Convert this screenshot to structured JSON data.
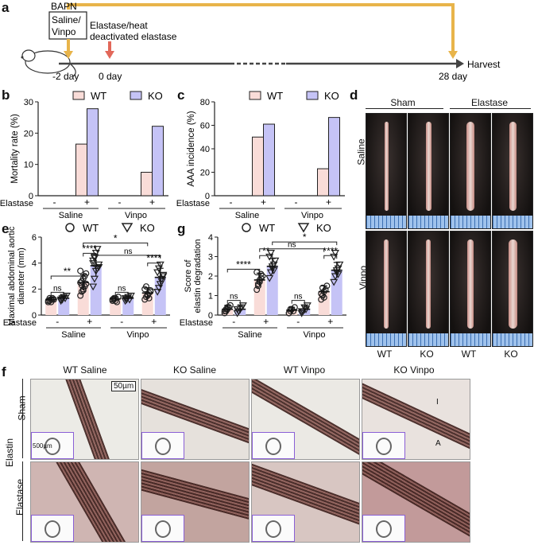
{
  "panels": {
    "a": "a",
    "b": "b",
    "c": "c",
    "d": "d",
    "e": "e",
    "f": "f",
    "g": "g"
  },
  "timeline": {
    "bapn": "BAPN",
    "treatment_line1": "Saline/",
    "treatment_line2": "Vinpo",
    "elastase_line1": "Elastase/heat",
    "elastase_line2": "deactivated elastase",
    "t_minus2": "-2 day",
    "t0": "0 day",
    "t28": "28 day",
    "harvest": "Harvest",
    "colors": {
      "orange": "#e8b44a",
      "red": "#e2685a",
      "axis": "#444444"
    }
  },
  "legend": {
    "wt": "WT",
    "ko": "KO"
  },
  "colors": {
    "wt_fill": "#f9dcd8",
    "ko_fill": "#c5c3f6",
    "inset_border": "#8a5fd6"
  },
  "axes_common": {
    "elastase": "Elastase",
    "minus": "-",
    "plus": "+",
    "saline": "Saline",
    "vinpo": "Vinpo"
  },
  "chart_data": [
    {
      "panel": "b",
      "type": "bar",
      "ylabel": "Mortality rate (%)",
      "ylim": [
        0,
        30
      ],
      "yticks": [
        0,
        10,
        20,
        30
      ],
      "categories": [
        "Saline -",
        "Saline +",
        "Vinpo -",
        "Vinpo +"
      ],
      "series": [
        {
          "name": "WT",
          "values": [
            0,
            16.5,
            0,
            7.5
          ]
        },
        {
          "name": "KO",
          "values": [
            0,
            27.8,
            0,
            22.2
          ]
        }
      ]
    },
    {
      "panel": "c",
      "type": "bar",
      "ylabel": "AAA incidence (%)",
      "ylim": [
        0,
        80
      ],
      "yticks": [
        0,
        20,
        40,
        60,
        80
      ],
      "categories": [
        "Saline -",
        "Saline +",
        "Vinpo -",
        "Vinpo +"
      ],
      "series": [
        {
          "name": "WT",
          "values": [
            0,
            50,
            0,
            23
          ]
        },
        {
          "name": "KO",
          "values": [
            0,
            61,
            0,
            66.7
          ]
        }
      ]
    },
    {
      "panel": "e",
      "type": "scatter",
      "ylabel": "Maximal abdominal aortic diameter (mm)",
      "ylim": [
        0,
        6
      ],
      "yticks": [
        0,
        2,
        4,
        6
      ],
      "groups": [
        {
          "series": "WT",
          "cond": "Saline -",
          "mean": 1.2,
          "sd": 0.15,
          "points": [
            1.0,
            1.1,
            1.2,
            1.3,
            1.2,
            1.1,
            1.3,
            1.0,
            1.2
          ]
        },
        {
          "series": "KO",
          "cond": "Saline -",
          "mean": 1.3,
          "sd": 0.15,
          "points": [
            1.1,
            1.2,
            1.4,
            1.3,
            1.5,
            1.2,
            1.3,
            1.4
          ]
        },
        {
          "series": "WT",
          "cond": "Saline +",
          "mean": 2.5,
          "sd": 0.6,
          "points": [
            1.5,
            1.8,
            2.0,
            2.2,
            2.4,
            2.5,
            2.6,
            2.8,
            3.0,
            3.2,
            3.4,
            2.3,
            1.9
          ]
        },
        {
          "series": "KO",
          "cond": "Saline +",
          "mean": 3.8,
          "sd": 0.8,
          "points": [
            2.2,
            2.8,
            3.4,
            3.6,
            3.9,
            4.2,
            4.5,
            4.8,
            5.1,
            3.7,
            4.0,
            4.4
          ]
        },
        {
          "series": "WT",
          "cond": "Vinpo -",
          "mean": 1.25,
          "sd": 0.15,
          "points": [
            1.1,
            1.2,
            1.3,
            1.0,
            1.4,
            1.2,
            1.3,
            1.1
          ]
        },
        {
          "series": "KO",
          "cond": "Vinpo -",
          "mean": 1.3,
          "sd": 0.15,
          "points": [
            1.1,
            1.3,
            1.4,
            1.2,
            1.5,
            1.3,
            1.2
          ]
        },
        {
          "series": "WT",
          "cond": "Vinpo +",
          "mean": 1.7,
          "sd": 0.4,
          "points": [
            1.2,
            1.4,
            1.5,
            1.7,
            1.8,
            2.0,
            2.2,
            1.6,
            1.3,
            1.9
          ]
        },
        {
          "series": "KO",
          "cond": "Vinpo +",
          "mean": 2.9,
          "sd": 0.7,
          "points": [
            1.8,
            2.1,
            2.4,
            2.8,
            3.0,
            3.3,
            3.6,
            3.9,
            2.6,
            3.1
          ]
        }
      ],
      "significance": [
        {
          "label": "**",
          "a": 0,
          "b": 2,
          "level": 3.0
        },
        {
          "label": "ns",
          "a": 0,
          "b": 1,
          "level": 1.75
        },
        {
          "label": "****",
          "a": 2,
          "b": 3,
          "level": 4.75
        },
        {
          "label": "ns",
          "a": 3,
          "b": 7,
          "level": 4.6
        },
        {
          "label": "*",
          "a": 2,
          "b": 6,
          "level": 5.55
        },
        {
          "label": "****",
          "a": 6,
          "b": 7,
          "level": 4.0
        },
        {
          "label": "ns",
          "a": 4,
          "b": 5,
          "level": 1.75
        }
      ]
    },
    {
      "panel": "g",
      "type": "scatter",
      "ylabel": "Score of elastin degradation",
      "ylim": [
        0,
        4
      ],
      "yticks": [
        0,
        1,
        2,
        3,
        4
      ],
      "groups": [
        {
          "series": "WT",
          "cond": "Saline -",
          "mean": 0.3,
          "sd": 0.2,
          "points": [
            0.1,
            0.2,
            0.3,
            0.4,
            0.5,
            0.2,
            0.3,
            0.4
          ]
        },
        {
          "series": "KO",
          "cond": "Saline -",
          "mean": 0.3,
          "sd": 0.2,
          "points": [
            0.1,
            0.2,
            0.3,
            0.4,
            0.5,
            0.3,
            0.2
          ]
        },
        {
          "series": "WT",
          "cond": "Saline +",
          "mean": 1.8,
          "sd": 0.35,
          "points": [
            1.3,
            1.5,
            1.7,
            1.9,
            2.0,
            2.2,
            1.6,
            1.8,
            2.1
          ]
        },
        {
          "series": "KO",
          "cond": "Saline +",
          "mean": 2.5,
          "sd": 0.4,
          "points": [
            1.9,
            2.2,
            2.4,
            2.6,
            2.8,
            3.0,
            3.2,
            2.5,
            2.3
          ]
        },
        {
          "series": "WT",
          "cond": "Vinpo -",
          "mean": 0.25,
          "sd": 0.15,
          "points": [
            0.1,
            0.2,
            0.3,
            0.2,
            0.4,
            0.1,
            0.3
          ]
        },
        {
          "series": "KO",
          "cond": "Vinpo -",
          "mean": 0.3,
          "sd": 0.2,
          "points": [
            0.1,
            0.2,
            0.4,
            0.3,
            0.5,
            0.2
          ]
        },
        {
          "series": "WT",
          "cond": "Vinpo +",
          "mean": 1.2,
          "sd": 0.3,
          "points": [
            0.8,
            1.0,
            1.2,
            1.3,
            1.5,
            1.1,
            1.4,
            0.9
          ]
        },
        {
          "series": "KO",
          "cond": "Vinpo +",
          "mean": 2.3,
          "sd": 0.4,
          "points": [
            1.7,
            2.0,
            2.2,
            2.4,
            2.6,
            3.0,
            3.2,
            2.3,
            2.1
          ]
        }
      ],
      "significance": [
        {
          "label": "****",
          "a": 0,
          "b": 2,
          "level": 2.35
        },
        {
          "label": "ns",
          "a": 0,
          "b": 1,
          "level": 0.75
        },
        {
          "label": "**",
          "a": 2,
          "b": 3,
          "level": 3.05
        },
        {
          "label": "ns",
          "a": 2,
          "b": 6,
          "level": 3.4
        },
        {
          "label": "*",
          "a": 3,
          "b": 7,
          "level": 3.75
        },
        {
          "label": "****",
          "a": 6,
          "b": 7,
          "level": 3.05
        },
        {
          "label": "ns",
          "a": 4,
          "b": 5,
          "level": 0.75
        }
      ]
    }
  ],
  "panel_d": {
    "sham": "Sham",
    "elastase": "Elastase",
    "saline": "Saline",
    "vinpo": "Vinpo",
    "cols": [
      "WT",
      "KO",
      "WT",
      "KO"
    ]
  },
  "panel_f": {
    "col_titles": [
      "WT Saline",
      "KO Saline",
      "WT Vinpo",
      "KO Vinpo"
    ],
    "scale_top": "50µm",
    "scale_inset": "500µm",
    "row_group": "Elastin",
    "rows": [
      "Sham",
      "Elastase"
    ],
    "label_i": "I",
    "label_a": "A"
  }
}
